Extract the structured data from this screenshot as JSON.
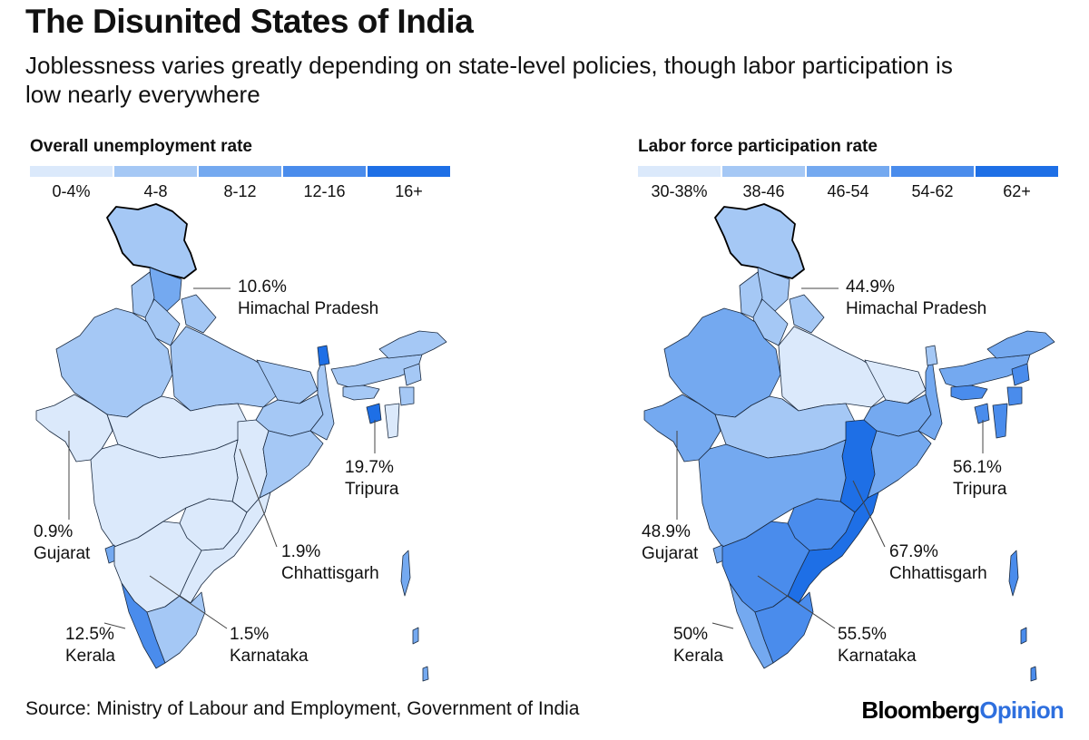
{
  "header": {
    "title": "The Disunited States of India",
    "subtitle": "Joblessness varies greatly depending on state-level policies, though labor participation is low nearly everywhere"
  },
  "maps": [
    {
      "legend_title": "Overall unemployment rate",
      "legend": [
        {
          "label": "0-4%",
          "color": "#dbe9fb"
        },
        {
          "label": "4-8",
          "color": "#a5c8f5"
        },
        {
          "label": "8-12",
          "color": "#74a9f0"
        },
        {
          "label": "12-16",
          "color": "#4a8cec"
        },
        {
          "label": "16+",
          "color": "#1e6fe6"
        }
      ],
      "callouts": [
        {
          "value": "10.6%",
          "state": "Himachal Pradesh"
        },
        {
          "value": "19.7%",
          "state": "Tripura"
        },
        {
          "value": "0.9%",
          "state": "Gujarat"
        },
        {
          "value": "1.9%",
          "state": "Chhattisgarh"
        },
        {
          "value": "12.5%",
          "state": "Kerala"
        },
        {
          "value": "1.5%",
          "state": "Karnataka"
        }
      ],
      "state_bins": {
        "Jammu and Kashmir": 1,
        "Himachal Pradesh": 2,
        "Punjab": 1,
        "Haryana": 1,
        "Uttarakhand": 1,
        "Rajasthan": 1,
        "Uttar Pradesh": 1,
        "Bihar": 1,
        "Jharkhand": 1,
        "West Bengal": 1,
        "Gujarat": 0,
        "Madhya Pradesh": 0,
        "Chhattisgarh": 0,
        "Odisha": 1,
        "Maharashtra": 0,
        "Telangana": 0,
        "Goa": 2,
        "Karnataka": 0,
        "Andhra Pradesh": 0,
        "Kerala": 3,
        "Tamil Nadu": 1,
        "Sikkim": 4,
        "Arunachal Pradesh": 1,
        "Assam": 1,
        "Meghalaya": 1,
        "Nagaland": 1,
        "Manipur": 1,
        "Mizoram": 0,
        "Tripura": 4,
        "Andaman and Nicobar": 2
      }
    },
    {
      "legend_title": "Labor force participation rate",
      "legend": [
        {
          "label": "30-38%",
          "color": "#dbe9fb"
        },
        {
          "label": "38-46",
          "color": "#a5c8f5"
        },
        {
          "label": "46-54",
          "color": "#74a9f0"
        },
        {
          "label": "54-62",
          "color": "#4a8cec"
        },
        {
          "label": "62+",
          "color": "#1e6fe6"
        }
      ],
      "callouts": [
        {
          "value": "44.9%",
          "state": "Himachal Pradesh"
        },
        {
          "value": "56.1%",
          "state": "Tripura"
        },
        {
          "value": "48.9%",
          "state": "Gujarat"
        },
        {
          "value": "67.9%",
          "state": "Chhattisgarh"
        },
        {
          "value": "50%",
          "state": "Kerala"
        },
        {
          "value": "55.5%",
          "state": "Karnataka"
        }
      ],
      "state_bins": {
        "Jammu and Kashmir": 1,
        "Himachal Pradesh": 1,
        "Punjab": 1,
        "Haryana": 1,
        "Uttarakhand": 1,
        "Rajasthan": 2,
        "Uttar Pradesh": 0,
        "Bihar": 0,
        "Jharkhand": 2,
        "West Bengal": 2,
        "Gujarat": 2,
        "Madhya Pradesh": 1,
        "Chhattisgarh": 4,
        "Odisha": 2,
        "Maharashtra": 2,
        "Telangana": 3,
        "Goa": 2,
        "Karnataka": 3,
        "Andhra Pradesh": 4,
        "Kerala": 2,
        "Tamil Nadu": 3,
        "Sikkim": 1,
        "Arunachal Pradesh": 2,
        "Assam": 2,
        "Meghalaya": 3,
        "Nagaland": 3,
        "Manipur": 3,
        "Mizoram": 3,
        "Tripura": 3,
        "Andaman and Nicobar": 3
      }
    }
  ],
  "footer": {
    "source": "Source: Ministry of Labour and Employment, Government of India",
    "brand_a": "Bloomberg",
    "brand_b": "Opinion"
  }
}
